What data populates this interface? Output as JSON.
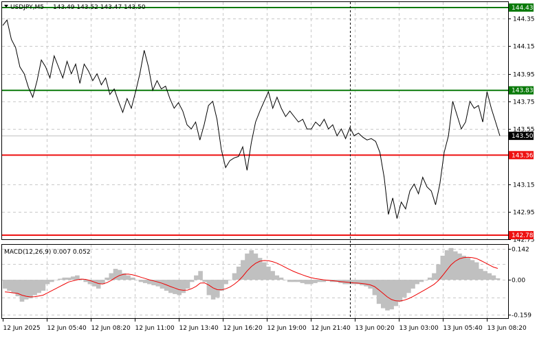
{
  "header": {
    "symbol": "USDJPY,M5",
    "ohlc": "143.49 143.52 143.47 143.50"
  },
  "macd": {
    "label": "MACD(12,26,9) 0.007 0.052"
  },
  "colors": {
    "price_line": "#000000",
    "support_line": "#ee1111",
    "resistance_line": "#0a7a0a",
    "histogram": "#c0c0c0",
    "signal": "#ee0000",
    "current_tag": "#000000"
  },
  "chart_data": [
    {
      "type": "line",
      "title": "USDJPY,M5",
      "x_ticks": [
        "12 Jun 2025",
        "12 Jun 05:40",
        "12 Jun 08:20",
        "12 Jun 11:00",
        "12 Jun 13:40",
        "12 Jun 16:20",
        "12 Jun 19:00",
        "12 Jun 21:40",
        "13 Jun 00:20",
        "13 Jun 03:00",
        "13 Jun 05:40",
        "13 Jun 08:20"
      ],
      "y_ticks": [
        144.35,
        144.15,
        143.95,
        143.75,
        143.55,
        143.15,
        142.95,
        142.75
      ],
      "ylim": [
        142.75,
        144.47
      ],
      "grid": true,
      "current_price": 143.5,
      "levels": [
        {
          "label": "144.43",
          "value": 144.43,
          "kind": "resistance"
        },
        {
          "label": "143.83",
          "value": 143.83,
          "kind": "resistance"
        },
        {
          "label": "143.36",
          "value": 143.36,
          "kind": "support"
        },
        {
          "label": "142.78",
          "value": 142.78,
          "kind": "support"
        }
      ],
      "series": [
        {
          "values": [
            144.3,
            144.34,
            144.2,
            144.14,
            144.0,
            143.95,
            143.85,
            143.78,
            143.9,
            144.05,
            144.0,
            143.92,
            144.08,
            144.0,
            143.92,
            144.04,
            143.95,
            144.02,
            143.88,
            144.02,
            143.97,
            143.9,
            143.95,
            143.87,
            143.92,
            143.8,
            143.84,
            143.75,
            143.67,
            143.77,
            143.7,
            143.82,
            143.95,
            144.12,
            144.0,
            143.83,
            143.9,
            143.84,
            143.86,
            143.77,
            143.7,
            143.74,
            143.68,
            143.58,
            143.55,
            143.6,
            143.47,
            143.58,
            143.72,
            143.75,
            143.62,
            143.4,
            143.27,
            143.32,
            143.34,
            143.35,
            143.42,
            143.25,
            143.45,
            143.6,
            143.68,
            143.75,
            143.82,
            143.7,
            143.78,
            143.7,
            143.64,
            143.68,
            143.64,
            143.6,
            143.62,
            143.55,
            143.55,
            143.6,
            143.57,
            143.62,
            143.55,
            143.58,
            143.5,
            143.55,
            143.48,
            143.56,
            143.5,
            143.52,
            143.49,
            143.47,
            143.48,
            143.46,
            143.38,
            143.2,
            142.93,
            143.05,
            142.9,
            143.02,
            142.97,
            143.1,
            143.15,
            143.08,
            143.2,
            143.13,
            143.1,
            143.0,
            143.15,
            143.38,
            143.5,
            143.75,
            143.65,
            143.55,
            143.6,
            143.75,
            143.7,
            143.72,
            143.6,
            143.82,
            143.7,
            143.6,
            143.5
          ]
        }
      ]
    },
    {
      "type": "bar",
      "title": "MACD(12,26,9) 0.007 0.052",
      "y_ticks": [
        0.142,
        0.0,
        -0.159
      ],
      "ylim": [
        -0.175,
        0.16
      ],
      "histogram": [
        -0.04,
        -0.05,
        -0.06,
        -0.075,
        -0.1,
        -0.09,
        -0.085,
        -0.07,
        -0.06,
        -0.05,
        -0.02,
        -0.01,
        0.0,
        0.005,
        0.01,
        0.01,
        0.015,
        0.02,
        0.005,
        -0.01,
        -0.02,
        -0.03,
        -0.04,
        -0.02,
        0.01,
        0.03,
        0.05,
        0.045,
        0.03,
        0.02,
        0.01,
        0.0,
        -0.01,
        -0.015,
        -0.02,
        -0.025,
        -0.03,
        -0.04,
        -0.05,
        -0.06,
        -0.065,
        -0.07,
        -0.06,
        -0.04,
        -0.01,
        0.02,
        0.04,
        -0.01,
        -0.07,
        -0.09,
        -0.08,
        -0.05,
        -0.02,
        0.0,
        0.03,
        0.06,
        0.09,
        0.12,
        0.135,
        0.12,
        0.1,
        0.08,
        0.06,
        0.04,
        0.02,
        0.01,
        0.0,
        -0.01,
        -0.01,
        -0.01,
        -0.015,
        -0.02,
        -0.02,
        -0.015,
        -0.01,
        -0.01,
        -0.005,
        -0.01,
        -0.01,
        -0.015,
        -0.02,
        -0.02,
        -0.02,
        -0.02,
        -0.025,
        -0.03,
        -0.04,
        -0.07,
        -0.11,
        -0.13,
        -0.14,
        -0.135,
        -0.12,
        -0.1,
        -0.08,
        -0.06,
        -0.04,
        -0.02,
        -0.01,
        0.0,
        0.01,
        0.03,
        0.07,
        0.11,
        0.135,
        0.145,
        0.13,
        0.12,
        0.11,
        0.1,
        0.09,
        0.08,
        0.05,
        0.04,
        0.03,
        0.02,
        0.007
      ],
      "signal": [
        -0.055,
        -0.057,
        -0.06,
        -0.062,
        -0.07,
        -0.075,
        -0.078,
        -0.077,
        -0.074,
        -0.07,
        -0.06,
        -0.05,
        -0.04,
        -0.03,
        -0.02,
        -0.01,
        -0.005,
        0.0,
        0.003,
        0.002,
        -0.003,
        -0.01,
        -0.017,
        -0.019,
        -0.013,
        -0.003,
        0.01,
        0.02,
        0.025,
        0.026,
        0.023,
        0.018,
        0.012,
        0.006,
        0.0,
        -0.005,
        -0.01,
        -0.016,
        -0.023,
        -0.031,
        -0.038,
        -0.045,
        -0.048,
        -0.047,
        -0.04,
        -0.03,
        -0.015,
        -0.014,
        -0.024,
        -0.037,
        -0.045,
        -0.046,
        -0.041,
        -0.033,
        -0.02,
        -0.004,
        0.016,
        0.04,
        0.06,
        0.075,
        0.085,
        0.088,
        0.087,
        0.083,
        0.076,
        0.067,
        0.057,
        0.047,
        0.038,
        0.03,
        0.023,
        0.016,
        0.01,
        0.006,
        0.003,
        0.0,
        -0.002,
        -0.004,
        -0.006,
        -0.008,
        -0.01,
        -0.012,
        -0.014,
        -0.015,
        -0.017,
        -0.019,
        -0.023,
        -0.031,
        -0.046,
        -0.062,
        -0.078,
        -0.09,
        -0.096,
        -0.097,
        -0.093,
        -0.086,
        -0.077,
        -0.066,
        -0.055,
        -0.044,
        -0.033,
        -0.021,
        -0.004,
        0.019,
        0.044,
        0.068,
        0.085,
        0.096,
        0.101,
        0.103,
        0.101,
        0.097,
        0.088,
        0.078,
        0.068,
        0.058,
        0.052
      ]
    }
  ]
}
